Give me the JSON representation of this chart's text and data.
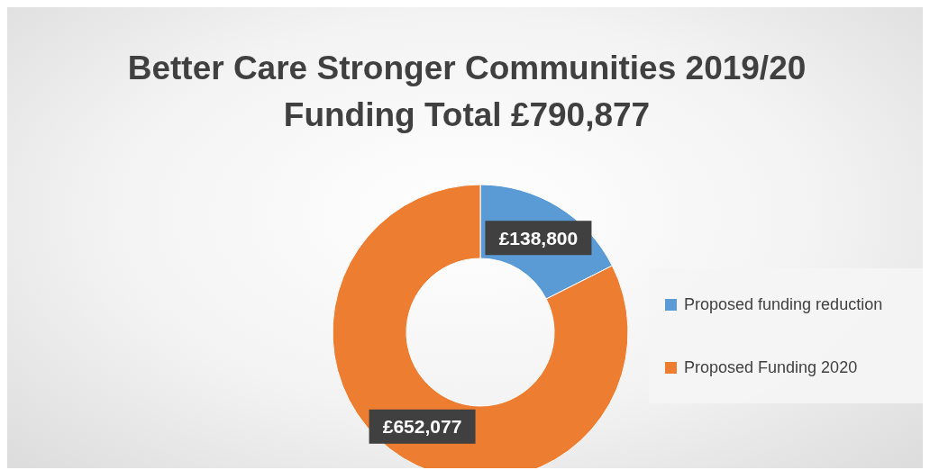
{
  "chart_data": {
    "type": "donut",
    "title": "Better Care Stronger Communities 2019/20 Funding Total £790,877",
    "categories": [
      "Proposed funding reduction",
      "Proposed Funding 2020"
    ],
    "values": [
      138800,
      652077
    ],
    "colors": [
      "#5b9bd5",
      "#ed7d31"
    ],
    "value_labels": [
      "£138,800",
      "£652,077"
    ],
    "legend": "right"
  }
}
